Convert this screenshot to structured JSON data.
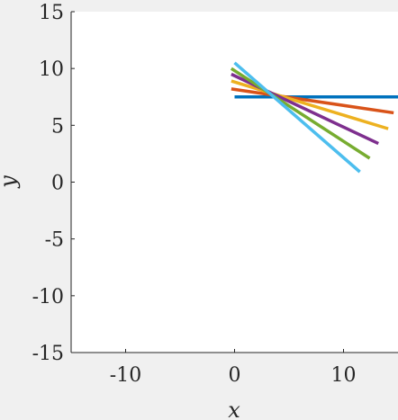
{
  "chart_data": {
    "type": "line",
    "title": "",
    "xlabel": "x",
    "ylabel": "y",
    "xlim": [
      -15,
      15
    ],
    "ylim": [
      -15,
      15
    ],
    "grid": false,
    "legend": "none",
    "xticks": [
      -10,
      0,
      10
    ],
    "xtick_labels": [
      "-10",
      "0",
      "10"
    ],
    "yticks": [
      -15,
      -10,
      -5,
      0,
      5,
      10,
      15
    ],
    "ytick_labels": [
      "-15",
      "-10",
      "-5",
      "0",
      "5",
      "10",
      "15"
    ],
    "series": [
      {
        "color": "#0072bd",
        "x": [
          0,
          15
        ],
        "y": [
          7.5,
          7.5
        ]
      },
      {
        "color": "#d95319",
        "x": [
          -0.3,
          14.6
        ],
        "y": [
          8.2,
          6.1
        ]
      },
      {
        "color": "#edb120",
        "x": [
          -0.3,
          14.1
        ],
        "y": [
          8.9,
          4.7
        ]
      },
      {
        "color": "#7e2f8e",
        "x": [
          -0.3,
          13.2
        ],
        "y": [
          9.5,
          3.4
        ]
      },
      {
        "color": "#77ac30",
        "x": [
          -0.3,
          12.4
        ],
        "y": [
          10.0,
          2.1
        ]
      },
      {
        "color": "#4dbeee",
        "x": [
          0.0,
          11.5
        ],
        "y": [
          10.5,
          0.9
        ]
      }
    ]
  }
}
